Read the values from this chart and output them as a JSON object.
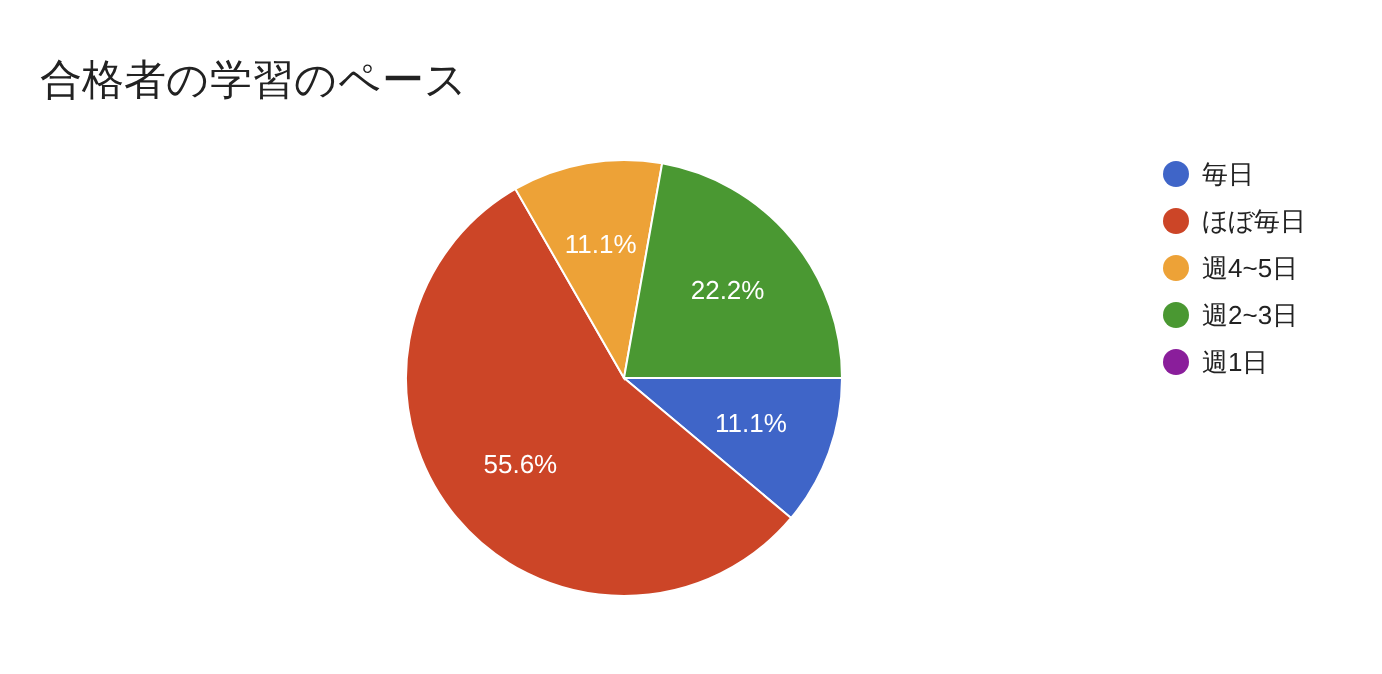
{
  "chart_data": {
    "type": "pie",
    "title": "合格者の学習のペース",
    "categories": [
      "毎日",
      "ほぼ毎日",
      "週4~5日",
      "週2~3日",
      "週1日"
    ],
    "values": [
      11.1,
      55.6,
      11.1,
      22.2,
      0
    ],
    "colors": [
      "#3f65c8",
      "#cc4527",
      "#eda237",
      "#4a9832",
      "#8a1e9b"
    ],
    "value_labels": [
      "11.1%",
      "55.6%",
      "11.1%",
      "22.2%",
      null
    ],
    "legend": "right"
  }
}
